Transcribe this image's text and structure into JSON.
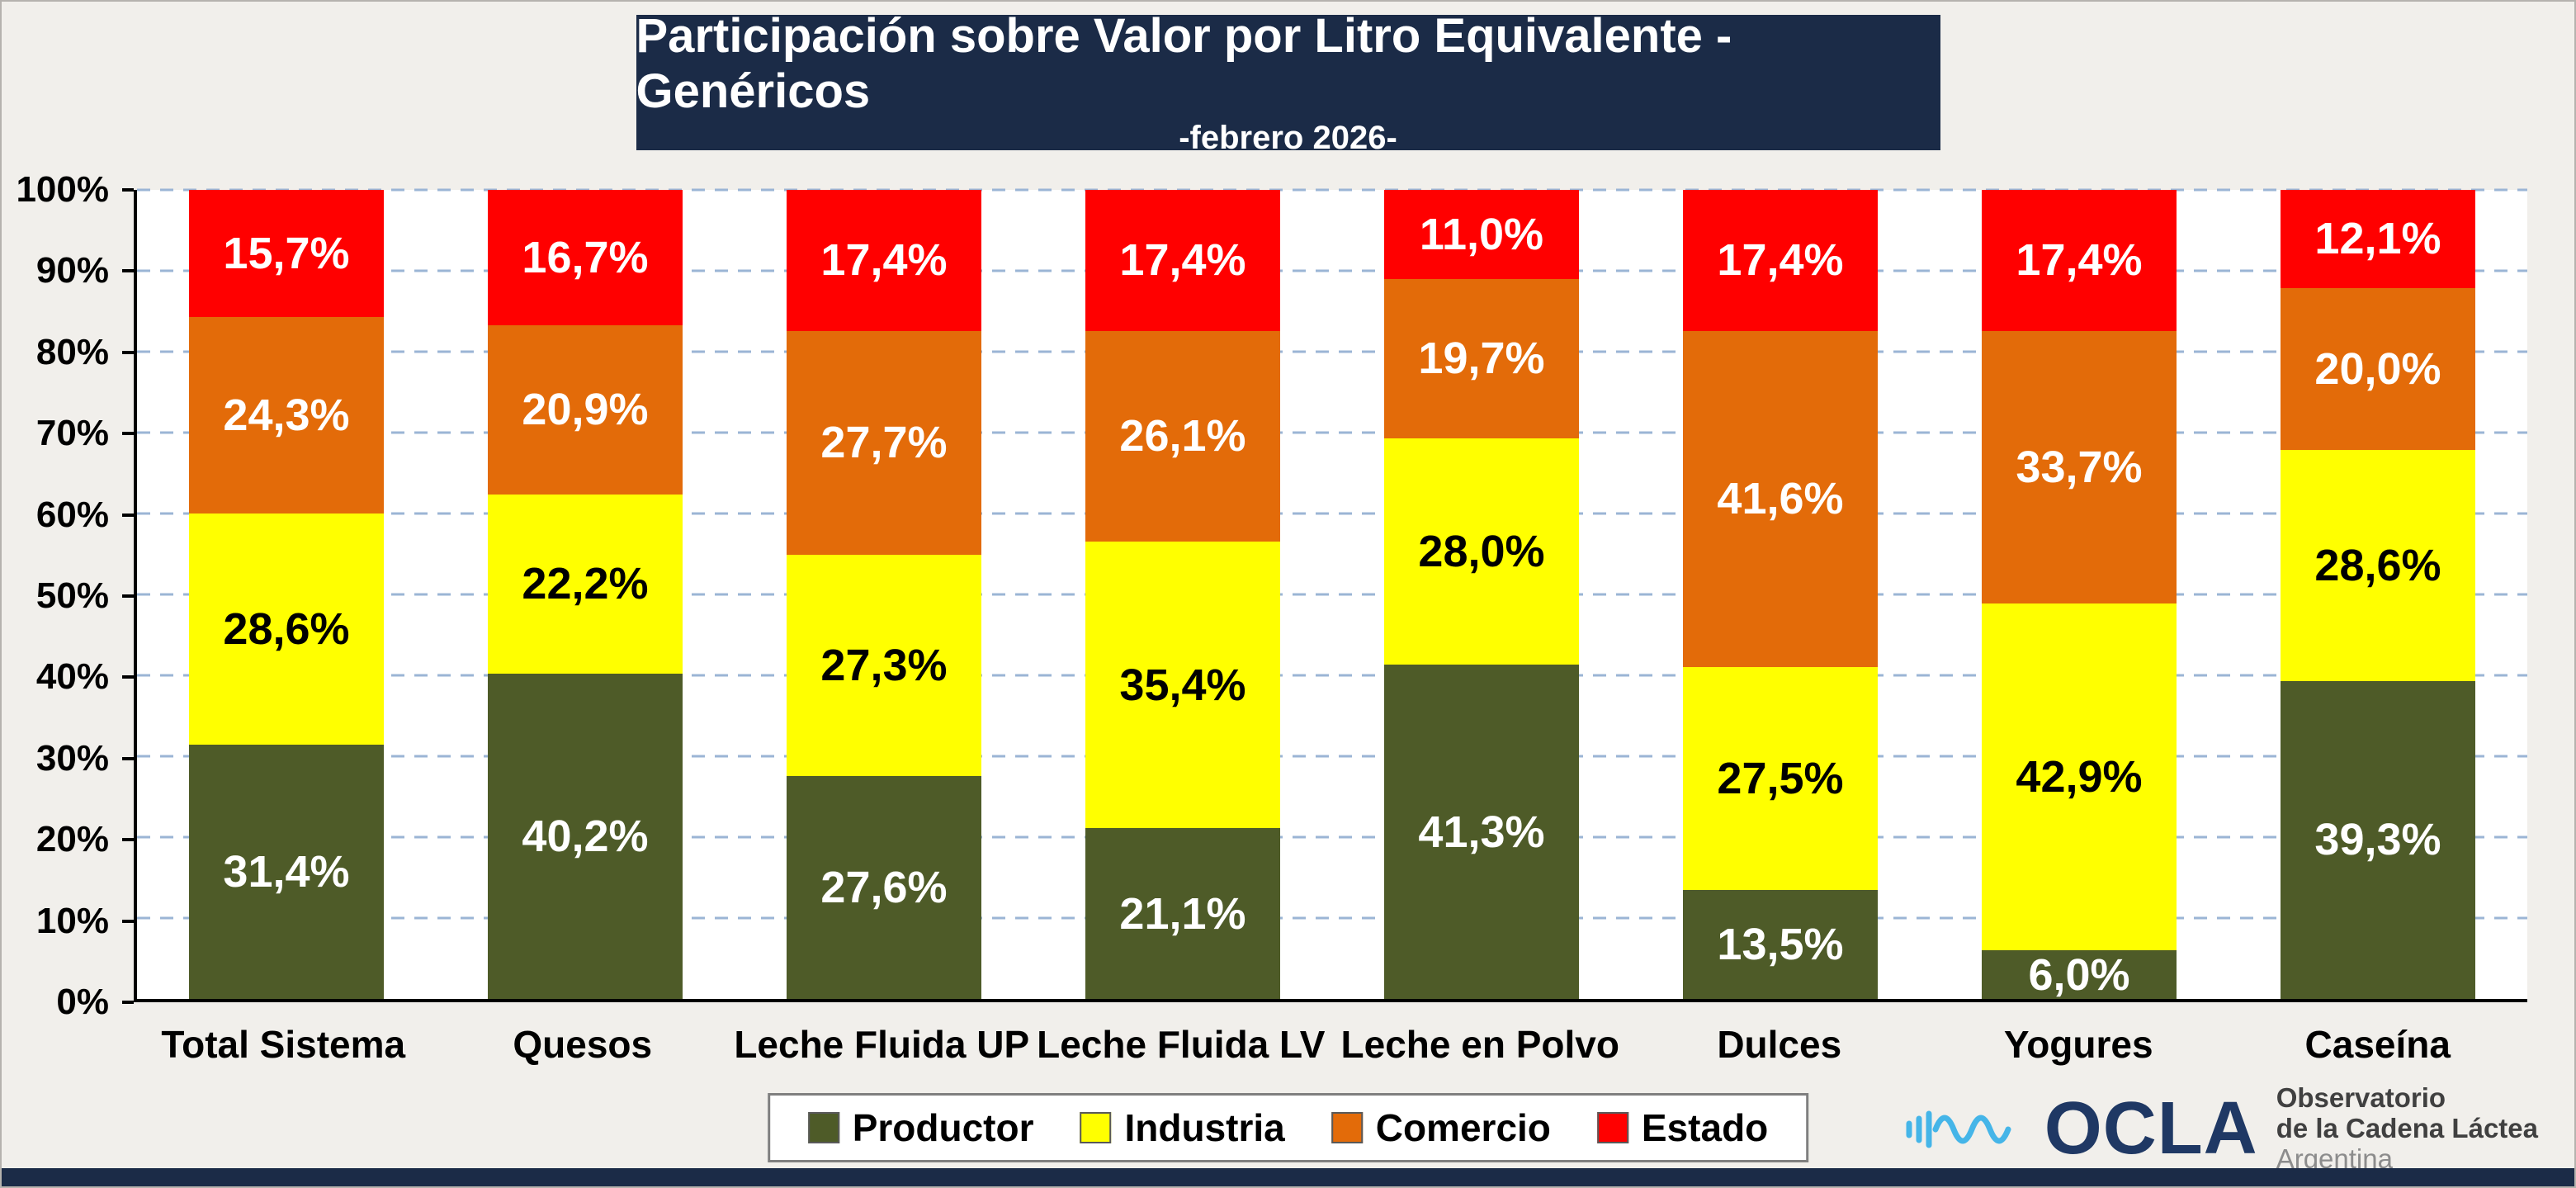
{
  "title": {
    "main": "Participación sobre Valor por Litro Equivalente - Genéricos",
    "subtitle": "-febrero 2026-"
  },
  "chart_data": {
    "type": "bar",
    "stacked": true,
    "title": "Participación sobre Valor por Litro Equivalente - Genéricos",
    "subtitle": "-febrero 2026-",
    "categories": [
      "Total Sistema",
      "Quesos",
      "Leche Fluida UP",
      "Leche Fluida LV",
      "Leche en Polvo",
      "Dulces",
      "Yogures",
      "Caseína"
    ],
    "series": [
      {
        "name": "Productor",
        "color": "#4e5b28",
        "label_color": "#ffffff",
        "values": [
          31.4,
          40.2,
          27.6,
          21.1,
          41.3,
          13.5,
          6.0,
          39.3
        ],
        "labels": [
          "31,4%",
          "40,2%",
          "27,6%",
          "21,1%",
          "41,3%",
          "13,5%",
          "6,0%",
          "39,3%"
        ]
      },
      {
        "name": "Industria",
        "color": "#ffff00",
        "label_color": "#000000",
        "values": [
          28.6,
          22.2,
          27.3,
          35.4,
          28.0,
          27.5,
          42.9,
          28.6
        ],
        "labels": [
          "28,6%",
          "22,2%",
          "27,3%",
          "35,4%",
          "28,0%",
          "27,5%",
          "42,9%",
          "28,6%"
        ]
      },
      {
        "name": "Comercio",
        "color": "#e36b09",
        "label_color": "#ffffff",
        "values": [
          24.3,
          20.9,
          27.7,
          26.1,
          19.7,
          41.6,
          33.7,
          20.0
        ],
        "labels": [
          "24,3%",
          "20,9%",
          "27,7%",
          "26,1%",
          "19,7%",
          "41,6%",
          "33,7%",
          "20,0%"
        ]
      },
      {
        "name": "Estado",
        "color": "#ff0000",
        "label_color": "#ffffff",
        "values": [
          15.7,
          16.7,
          17.4,
          17.4,
          11.0,
          17.4,
          17.4,
          12.1
        ],
        "labels": [
          "15,7%",
          "16,7%",
          "17,4%",
          "17,4%",
          "11,0%",
          "17,4%",
          "17,4%",
          "12,1%"
        ]
      }
    ],
    "y_ticks": [
      "0%",
      "10%",
      "20%",
      "30%",
      "40%",
      "50%",
      "60%",
      "70%",
      "80%",
      "90%",
      "100%"
    ],
    "ylim": [
      0,
      100
    ],
    "grid": true,
    "gridline_color": "#9bb5d5",
    "legend_position": "bottom"
  },
  "footer": {
    "wordmark": "OCLA",
    "org_line1": "Observatorio",
    "org_line2": "de la Cadena Láctea",
    "org_line3": "Argentina"
  }
}
